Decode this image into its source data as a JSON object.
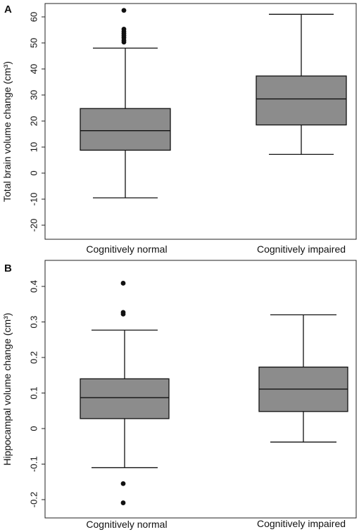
{
  "chart_data": [
    {
      "panel": "A",
      "type": "boxplot",
      "ylabel": "Total brain volume change (cm³)",
      "ylim": [
        -20,
        60
      ],
      "yticks": [
        -20,
        -10,
        0,
        10,
        20,
        30,
        40,
        50,
        60
      ],
      "yticklabels": [
        "-20",
        "-10",
        "0",
        "10",
        "20",
        "30",
        "40",
        "50",
        "60"
      ],
      "categories": [
        "Cognitively normal",
        "Cognitively impaired"
      ],
      "boxes": [
        {
          "whisker_low": -9.5,
          "q1": 8.8,
          "median": 16.3,
          "q3": 24.8,
          "whisker_high": 48.0,
          "outliers": [
            50.3,
            51.0,
            52.0,
            52.8,
            53.6,
            54.4,
            55.3,
            62.5
          ]
        },
        {
          "whisker_low": 7.2,
          "q1": 18.5,
          "median": 28.5,
          "q3": 37.3,
          "whisker_high": 61.0,
          "outliers": []
        }
      ],
      "box_color": "#8c8c8c",
      "grid": false
    },
    {
      "panel": "B",
      "type": "boxplot",
      "ylabel": "Hippocampal volume change (cm³)",
      "ylim": [
        -0.2,
        0.4
      ],
      "yticks": [
        -0.2,
        -0.1,
        0,
        0.1,
        0.2,
        0.3,
        0.4
      ],
      "yticklabels": [
        "-0.2",
        "-0.1",
        "0",
        "0.1",
        "0.2",
        "0.3",
        "0.4"
      ],
      "categories": [
        "Cognitively normal",
        "Cognitively impaired"
      ],
      "boxes": [
        {
          "whisker_low": -0.11,
          "q1": 0.028,
          "median": 0.087,
          "q3": 0.14,
          "whisker_high": 0.277,
          "outliers": [
            0.409,
            0.327,
            0.322,
            -0.155,
            -0.209
          ]
        },
        {
          "whisker_low": -0.038,
          "q1": 0.048,
          "median": 0.111,
          "q3": 0.173,
          "whisker_high": 0.32,
          "outliers": []
        }
      ],
      "box_color": "#8c8c8c",
      "grid": false
    }
  ]
}
